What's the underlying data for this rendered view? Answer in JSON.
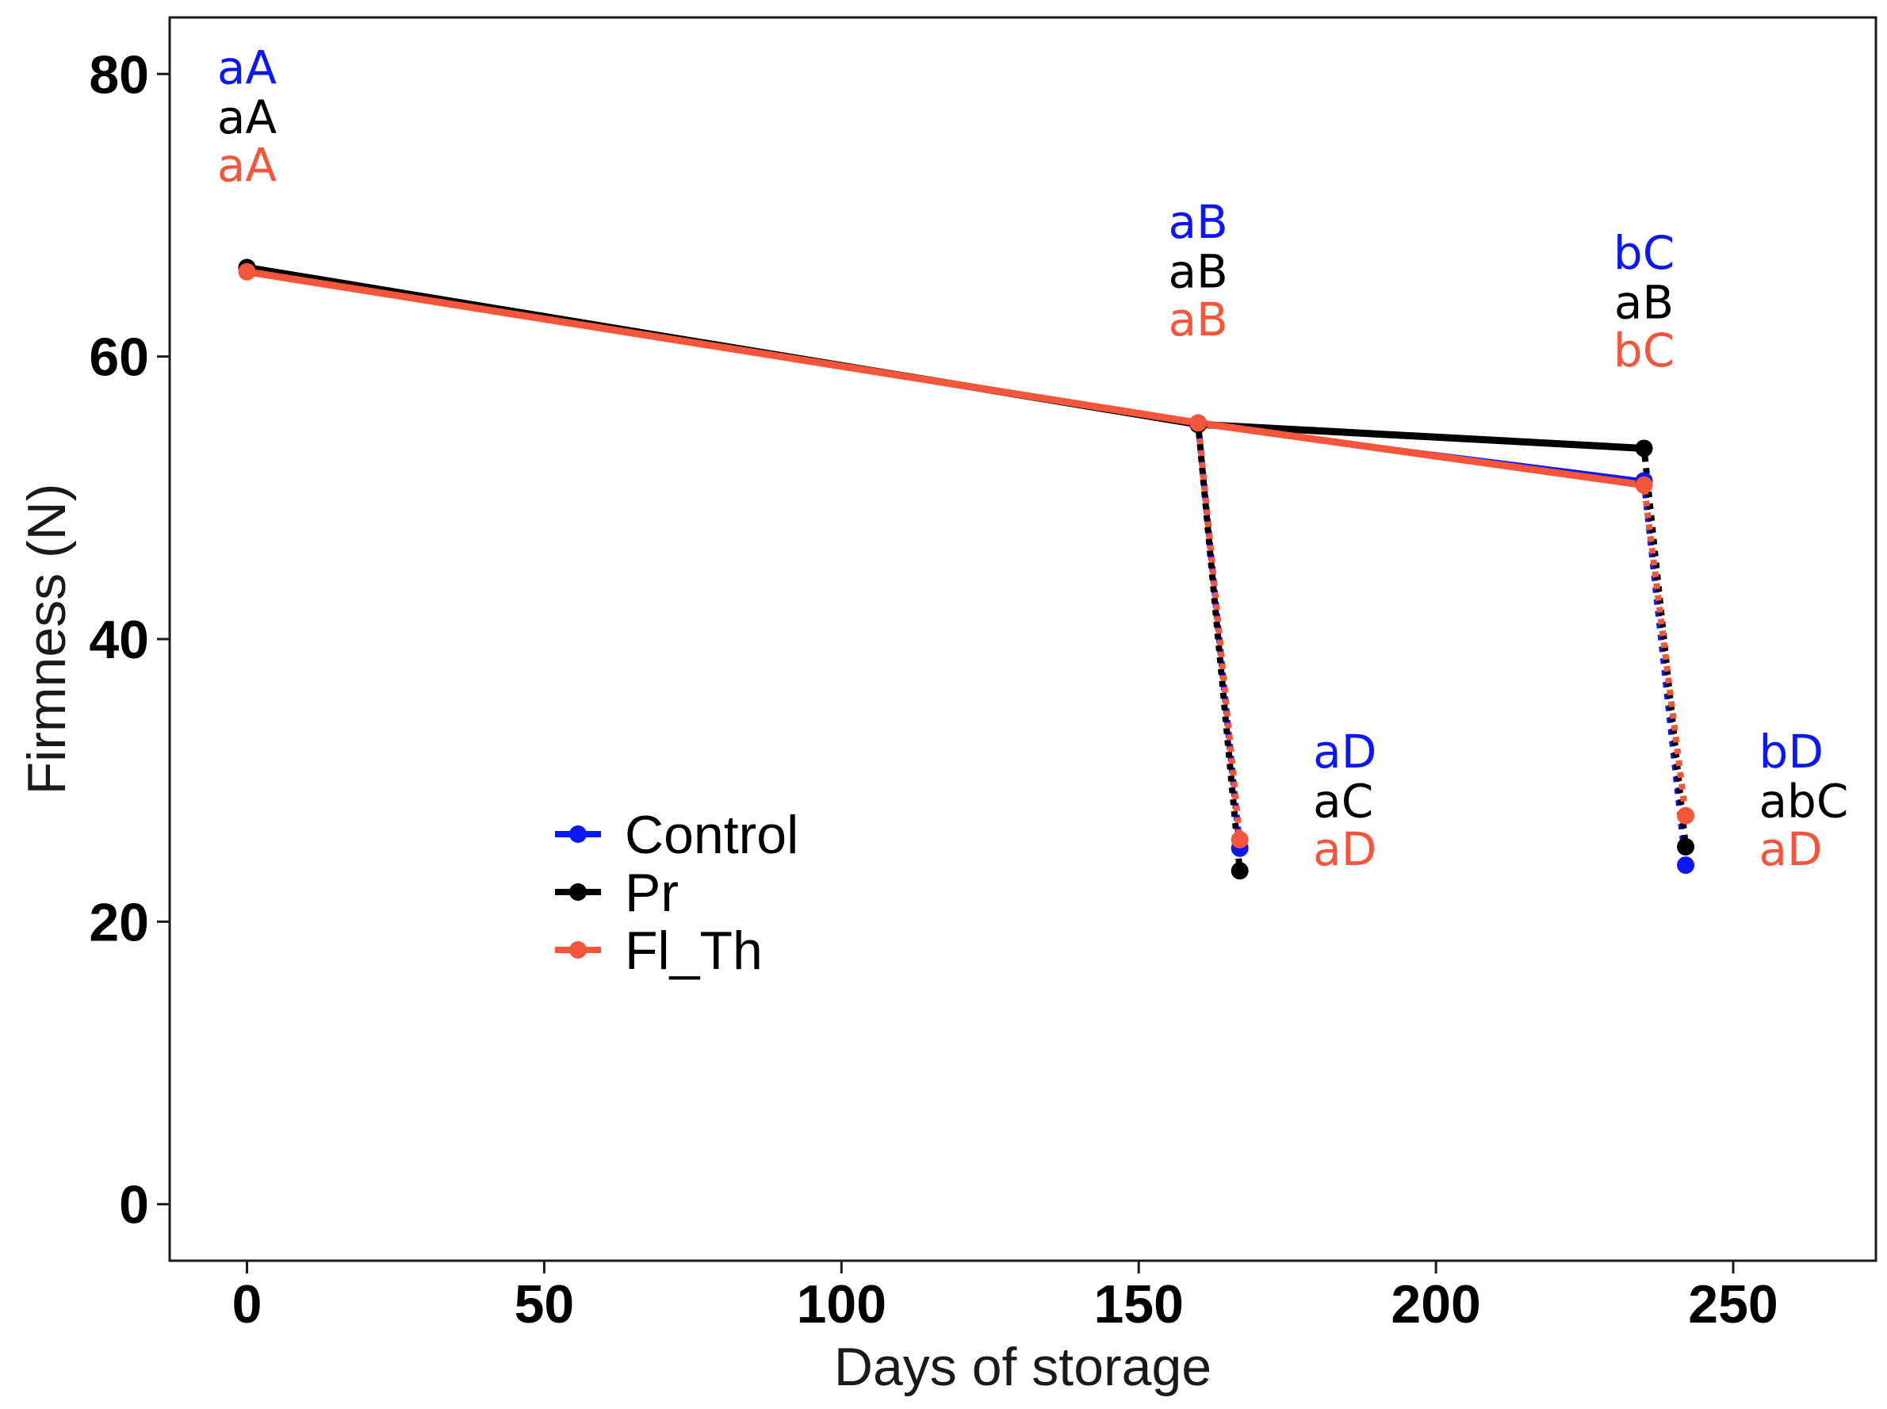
{
  "chart_data": {
    "type": "line",
    "title": "",
    "xlabel": "Days of storage",
    "ylabel": "Firmness (N)",
    "xlim": [
      -13,
      274
    ],
    "ylim": [
      -4,
      84
    ],
    "xticks": [
      0,
      50,
      100,
      150,
      200,
      250
    ],
    "yticks": [
      0,
      20,
      40,
      60,
      80
    ],
    "grid": false,
    "legend_position": "center-left",
    "series": [
      {
        "name": "Control",
        "color": "#0b17f5",
        "storage": {
          "x": [
            0,
            160,
            235
          ],
          "y": [
            66.2,
            55.2,
            51.2
          ]
        },
        "shelf_life": [
          {
            "x": [
              160,
              167
            ],
            "y": [
              55.2,
              25.2
            ]
          },
          {
            "x": [
              235,
              242
            ],
            "y": [
              51.2,
              24.0
            ]
          }
        ]
      },
      {
        "name": "Pr",
        "color": "#000000",
        "storage": {
          "x": [
            0,
            160,
            235
          ],
          "y": [
            66.3,
            55.2,
            53.5
          ]
        },
        "shelf_life": [
          {
            "x": [
              160,
              167
            ],
            "y": [
              55.2,
              23.6
            ]
          },
          {
            "x": [
              235,
              242
            ],
            "y": [
              53.5,
              25.3
            ]
          }
        ]
      },
      {
        "name": "Fl_Th",
        "color": "#f5553a",
        "storage": {
          "x": [
            0,
            160,
            235
          ],
          "y": [
            66.0,
            55.3,
            50.9
          ]
        },
        "shelf_life": [
          {
            "x": [
              160,
              167
            ],
            "y": [
              55.3,
              25.8
            ]
          },
          {
            "x": [
              235,
              242
            ],
            "y": [
              50.9,
              27.5
            ]
          }
        ]
      }
    ],
    "annotations": [
      {
        "x": 0,
        "labels": [
          "aA",
          "aA",
          "aA"
        ]
      },
      {
        "x": 160,
        "labels": [
          "aB",
          "aB",
          "aB"
        ]
      },
      {
        "x": 235,
        "labels": [
          "bC",
          "aB",
          "bC"
        ]
      },
      {
        "x": 167,
        "labels": [
          "aD",
          "aC",
          "aD"
        ]
      },
      {
        "x": 242,
        "labels": [
          "bD",
          "abC",
          "aD"
        ]
      }
    ]
  }
}
